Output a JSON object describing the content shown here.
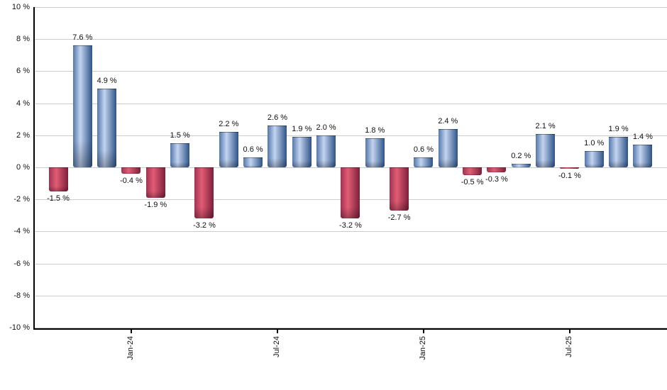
{
  "chart_data": {
    "type": "bar",
    "values": [
      -1.5,
      7.6,
      4.9,
      -0.4,
      -1.9,
      1.5,
      -3.2,
      2.2,
      0.6,
      2.6,
      1.9,
      2.0,
      -3.2,
      1.8,
      -2.7,
      0.6,
      2.4,
      -0.5,
      -0.3,
      0.2,
      2.1,
      -0.1,
      1.0,
      1.9,
      1.4
    ],
    "bar_labels": [
      "-1.5 %",
      "7.6 %",
      "4.9 %",
      "-0.4 %",
      "-1.9 %",
      "1.5 %",
      "-3.2 %",
      "2.2 %",
      "0.6 %",
      "2.6 %",
      "1.9 %",
      "2.0 %",
      "-3.2 %",
      "1.8 %",
      "-2.7 %",
      "0.6 %",
      "2.4 %",
      "-0.5 %",
      "-0.3 %",
      "0.2 %",
      "2.1 %",
      "-0.1 %",
      "1.0 %",
      "1.9 %",
      "1.4 %"
    ],
    "x_ticks": [
      {
        "label": "Jan-24",
        "bar_index": 3
      },
      {
        "label": "Jul-24",
        "bar_index": 9
      },
      {
        "label": "Jan-25",
        "bar_index": 15
      },
      {
        "label": "Jul-25",
        "bar_index": 21
      }
    ],
    "y_ticks": [
      {
        "value": 10,
        "label": "10 %"
      },
      {
        "value": 8,
        "label": "8 %"
      },
      {
        "value": 6,
        "label": "6 %"
      },
      {
        "value": 4,
        "label": "4 %"
      },
      {
        "value": 2,
        "label": "2 %"
      },
      {
        "value": 0,
        "label": "0 %"
      },
      {
        "value": -2,
        "label": "-2 %"
      },
      {
        "value": -4,
        "label": "-4 %"
      },
      {
        "value": -6,
        "label": "-6 %"
      },
      {
        "value": -8,
        "label": "-8 %"
      },
      {
        "value": -10,
        "label": "-10 %"
      }
    ],
    "ylim": [
      -10,
      10
    ],
    "y_tick_step": 2,
    "grid": true,
    "legend": "none",
    "colors": {
      "positive_gradient": [
        "#5477ab",
        "#c3d4ef",
        "#2e5388"
      ],
      "negative_gradient": [
        "#a03352",
        "#e25c74",
        "#7c1f3b"
      ],
      "gridline": "#cccccc",
      "axis": "#000000",
      "label_text": "#111111",
      "background": "#ffffff"
    }
  }
}
